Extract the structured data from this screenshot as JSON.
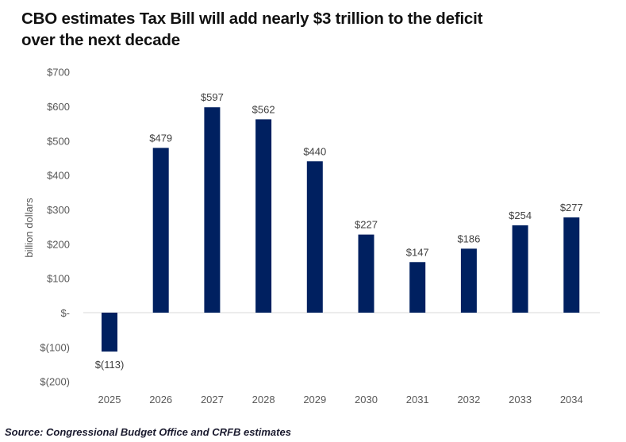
{
  "chart_data": {
    "type": "bar",
    "title": "CBO estimates Tax Bill will add nearly $3 trillion to the deficit over the next decade",
    "title_lines": [
      "CBO estimates Tax Bill will add nearly $3 trillion to the deficit",
      "over the next decade"
    ],
    "xlabel": "",
    "ylabel": "billion dollars",
    "ylim": [
      -200,
      700
    ],
    "yticks": [
      700,
      600,
      500,
      400,
      300,
      200,
      100,
      0,
      -100,
      -200
    ],
    "ytick_labels": [
      "$700",
      "$600",
      "$500",
      "$400",
      "$300",
      "$200",
      "$100",
      "$-",
      "$(100)",
      "$(200)"
    ],
    "categories": [
      "2025",
      "2026",
      "2027",
      "2028",
      "2029",
      "2030",
      "2031",
      "2032",
      "2033",
      "2034"
    ],
    "values": [
      -113,
      479,
      597,
      562,
      440,
      227,
      147,
      186,
      254,
      277
    ],
    "data_labels": [
      "$(113)",
      "$479",
      "$597",
      "$562",
      "$440",
      "$227",
      "$147",
      "$186",
      "$254",
      "$277"
    ],
    "bar_color": "#002060",
    "grid": false,
    "legend": "none"
  },
  "source": "Source: Congressional Budget Office and CRFB estimates"
}
